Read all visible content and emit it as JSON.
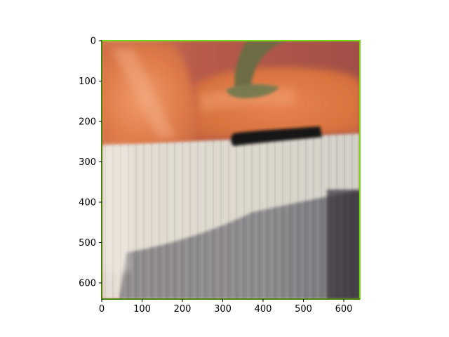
{
  "image_panel": {
    "subject": "blurry photo of an orange bell pepper behind a white corrugated surface with a dark object on its edge",
    "colors": {
      "pepper_orange": "#e07a45",
      "pepper_stem": "#6f7048",
      "background_red": "#a4554a",
      "white_surface": "#ddd8cf",
      "shadow_gray": "#8f8c8e",
      "dark_object": "#151417",
      "frame_border": "#7bd41a"
    }
  },
  "axes": {
    "x_ticks": [
      "0",
      "100",
      "200",
      "300",
      "400",
      "500",
      "600"
    ],
    "y_ticks": [
      "0",
      "100",
      "200",
      "300",
      "400",
      "500",
      "600"
    ],
    "xlim": [
      0,
      640
    ],
    "ylim": [
      640,
      0
    ],
    "y_inverted": true
  }
}
